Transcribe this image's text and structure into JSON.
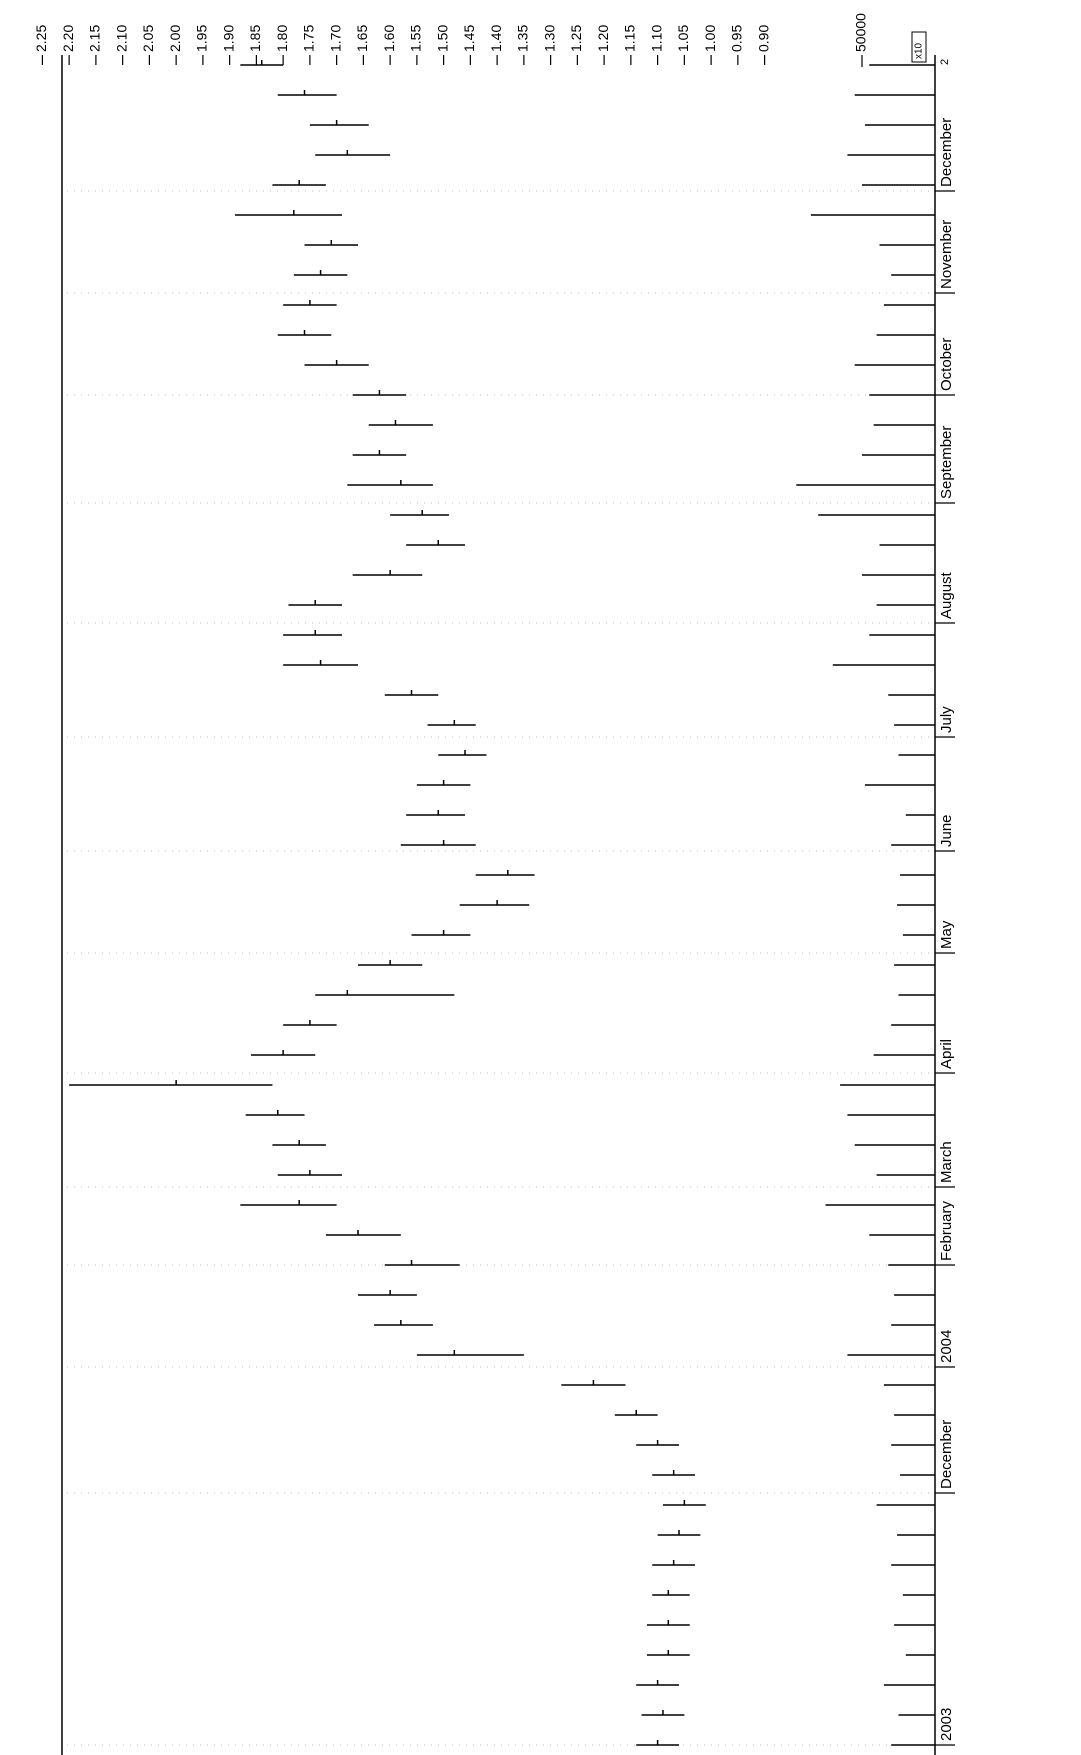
{
  "chart_data": {
    "type": "ohlc",
    "color": "#000000",
    "x": [
      0,
      5,
      10,
      15,
      20,
      25,
      30,
      35,
      40,
      45,
      50,
      55,
      60,
      65,
      70,
      75,
      80,
      85,
      90,
      95,
      100,
      105,
      110,
      115,
      120,
      125,
      130,
      135,
      140,
      145,
      150,
      155,
      160,
      165,
      170,
      175,
      180,
      185,
      190,
      195,
      200,
      205,
      210,
      215,
      220,
      225,
      230,
      235,
      240,
      245,
      250,
      255,
      260,
      265,
      270,
      275,
      280
    ],
    "high": [
      1.14,
      1.13,
      1.14,
      1.12,
      1.12,
      1.11,
      1.11,
      1.1,
      1.09,
      1.11,
      1.14,
      1.18,
      1.28,
      1.55,
      1.63,
      1.66,
      1.61,
      1.72,
      1.88,
      1.81,
      1.82,
      1.87,
      2.2,
      1.86,
      1.8,
      1.74,
      1.66,
      1.56,
      1.47,
      1.44,
      1.58,
      1.57,
      1.55,
      1.51,
      1.53,
      1.61,
      1.8,
      1.8,
      1.79,
      1.67,
      1.57,
      1.6,
      1.68,
      1.67,
      1.64,
      1.67,
      1.76,
      1.81,
      1.8,
      1.78,
      1.76,
      1.89,
      1.82,
      1.74,
      1.75,
      1.81,
      1.88
    ],
    "low": [
      1.06,
      1.05,
      1.06,
      1.04,
      1.04,
      1.04,
      1.03,
      1.02,
      1.01,
      1.03,
      1.06,
      1.1,
      1.16,
      1.35,
      1.52,
      1.55,
      1.47,
      1.58,
      1.7,
      1.69,
      1.72,
      1.76,
      1.82,
      1.74,
      1.7,
      1.48,
      1.54,
      1.45,
      1.34,
      1.33,
      1.44,
      1.46,
      1.45,
      1.42,
      1.44,
      1.51,
      1.66,
      1.69,
      1.69,
      1.54,
      1.46,
      1.49,
      1.52,
      1.57,
      1.52,
      1.57,
      1.64,
      1.71,
      1.7,
      1.68,
      1.66,
      1.69,
      1.72,
      1.6,
      1.64,
      1.7,
      1.8
    ],
    "close": [
      1.1,
      1.09,
      1.1,
      1.08,
      1.08,
      1.08,
      1.07,
      1.06,
      1.05,
      1.07,
      1.1,
      1.14,
      1.22,
      1.48,
      1.58,
      1.6,
      1.56,
      1.66,
      1.77,
      1.75,
      1.77,
      1.81,
      2.0,
      1.8,
      1.75,
      1.68,
      1.6,
      1.5,
      1.4,
      1.38,
      1.5,
      1.51,
      1.5,
      1.46,
      1.48,
      1.56,
      1.73,
      1.74,
      1.74,
      1.6,
      1.51,
      1.54,
      1.58,
      1.62,
      1.59,
      1.62,
      1.7,
      1.76,
      1.75,
      1.73,
      1.71,
      1.78,
      1.77,
      1.68,
      1.7,
      1.76,
      1.84
    ],
    "xlim": [
      -1,
      281
    ],
    "xticks": [
      {
        "value": 0,
        "label": "2003"
      },
      {
        "value": 42,
        "label": "December"
      },
      {
        "value": 63,
        "label": "2004"
      },
      {
        "value": 80,
        "label": "February"
      },
      {
        "value": 93,
        "label": "March"
      },
      {
        "value": 112,
        "label": "April"
      },
      {
        "value": 132,
        "label": "May"
      },
      {
        "value": 149,
        "label": "June"
      },
      {
        "value": 168,
        "label": "July"
      },
      {
        "value": 187,
        "label": "August"
      },
      {
        "value": 207,
        "label": "September"
      },
      {
        "value": 225,
        "label": "October"
      },
      {
        "value": 242,
        "label": "November"
      },
      {
        "value": 259,
        "label": "December"
      }
    ],
    "ylim": [
      0.86,
      2.29
    ],
    "yticks": [
      {
        "value": 0.9,
        "label": "0.90"
      },
      0.95,
      {
        "value": 1,
        "label": "1.00"
      },
      1.05,
      {
        "value": 1.1,
        "label": "1.10"
      },
      1.15,
      {
        "value": 1.2,
        "label": "1.20"
      },
      1.25,
      {
        "value": 1.3,
        "label": "1.30"
      },
      1.35,
      {
        "value": 1.4,
        "label": "1.40"
      },
      1.45,
      {
        "value": 1.5,
        "label": "1.50"
      },
      1.55,
      {
        "value": 1.6,
        "label": "1.60"
      },
      1.65,
      {
        "value": 1.7,
        "label": "1.70"
      },
      1.75,
      {
        "value": 1.8,
        "label": "1.80"
      },
      1.85,
      {
        "value": 1.9,
        "label": "1.90"
      },
      1.95,
      {
        "value": 2,
        "label": "2.00"
      },
      2.05,
      {
        "value": 2.1,
        "label": "2.10"
      },
      2.15,
      {
        "value": 2.2,
        "label": "2.20"
      },
      2.25
    ],
    "grid": true,
    "volume": {
      "values": [
        30000,
        25000,
        35000,
        20000,
        28000,
        22000,
        30000,
        26000,
        40000,
        24000,
        30000,
        28000,
        35000,
        60000,
        30000,
        28000,
        32000,
        45000,
        75000,
        40000,
        55000,
        60000,
        65000,
        42000,
        30000,
        25000,
        28000,
        22000,
        26000,
        24000,
        30000,
        20000,
        48000,
        25000,
        28000,
        32000,
        70000,
        45000,
        40000,
        50000,
        38000,
        80000,
        95000,
        50000,
        42000,
        45000,
        55000,
        40000,
        35000,
        30000,
        38000,
        85000,
        50000,
        60000,
        48000,
        55000,
        45000
      ],
      "ylim": [
        0,
        100000
      ],
      "yticks": [
        50000
      ],
      "multiplier": "x10",
      "exponent": "2"
    }
  }
}
